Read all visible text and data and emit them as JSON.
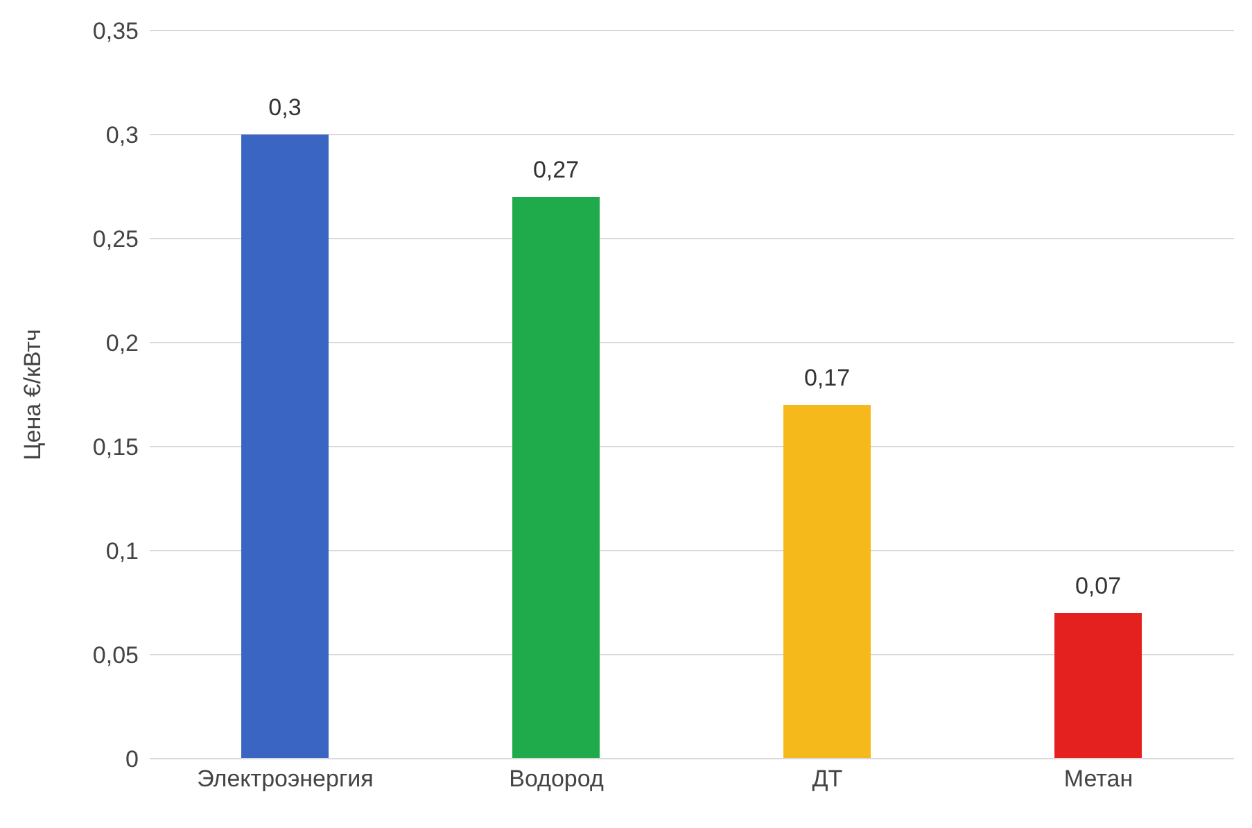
{
  "chart_data": {
    "type": "bar",
    "ylabel": "Цена €/кВтч",
    "categories": [
      "Электроэнергия",
      "Водород",
      "ДТ",
      "Метан"
    ],
    "values": [
      0.3,
      0.27,
      0.17,
      0.07
    ],
    "colors": [
      "#3a65c3",
      "#1faa4b",
      "#f6b91c",
      "#e5211f"
    ],
    "value_labels": [
      "0,3",
      "0,27",
      "0,17",
      "0,07"
    ],
    "ylim": [
      0,
      0.35
    ],
    "yticks": [
      {
        "value": 0,
        "label": "0"
      },
      {
        "value": 0.05,
        "label": "0,05"
      },
      {
        "value": 0.1,
        "label": "0,1"
      },
      {
        "value": 0.15,
        "label": "0,15"
      },
      {
        "value": 0.2,
        "label": "0,2"
      },
      {
        "value": 0.25,
        "label": "0,25"
      },
      {
        "value": 0.3,
        "label": "0,3"
      },
      {
        "value": 0.35,
        "label": "0,35"
      }
    ],
    "grid": "y"
  }
}
